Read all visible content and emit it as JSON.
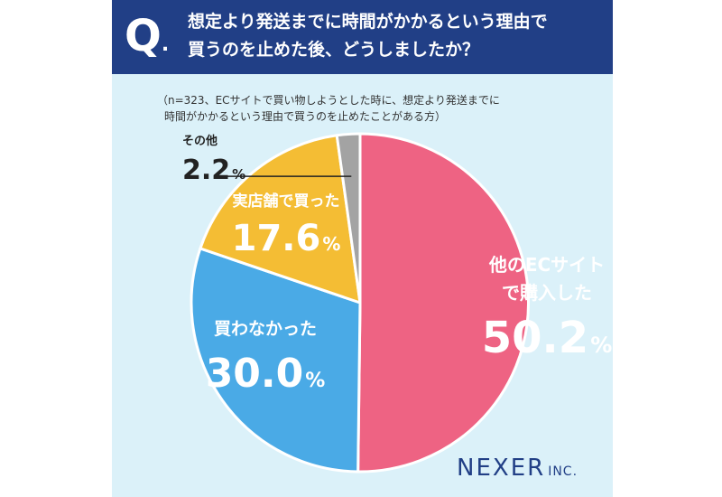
{
  "header": {
    "q_mark": "Q",
    "q_dot": ".",
    "title_line1": "想定より発送までに時間がかかるという理由で",
    "title_line2": "買うのを止めた後、どうしましたか？"
  },
  "note": {
    "line1": "（n=323、ECサイトで買い物しようとした時に、想定より発送までに",
    "line2": "時間がかかるという理由で買うのを止めたことがある方）"
  },
  "chart_data": {
    "type": "pie",
    "start": "12 o'clock, clockwise",
    "slices": [
      {
        "label_lines": [
          "他のECサイト",
          "で購入した"
        ],
        "value": 50.2,
        "value_text": "50.2",
        "unit": "%",
        "color": "#ee6383"
      },
      {
        "label_lines": [
          "買わなかった"
        ],
        "value": 30.0,
        "value_text": "30.0",
        "unit": "%",
        "color": "#4aaae6"
      },
      {
        "label_lines": [
          "実店舗で買った"
        ],
        "value": 17.6,
        "value_text": "17.6",
        "unit": "%",
        "color": "#f4bd34"
      },
      {
        "label_lines": [
          "その他"
        ],
        "value": 2.2,
        "value_text": "2.2",
        "unit": "%",
        "color": "#a3a3a3"
      }
    ]
  },
  "brand": {
    "main": "NEXER",
    "sub": "INC."
  },
  "colors": {
    "header_bg": "#213f86",
    "card_bg": "#dbf1f9",
    "label_white": "#ffffff",
    "label_dark": "#222222"
  }
}
